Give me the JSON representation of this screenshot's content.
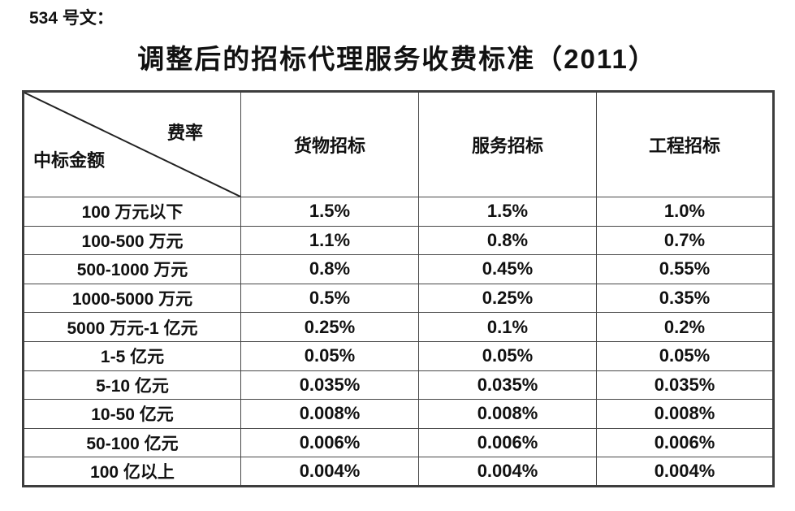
{
  "colors": {
    "background": "#ffffff",
    "text": "#111111",
    "border": "#474747"
  },
  "document": {
    "doc_label": "534 号文：",
    "title": "调整后的招标代理服务收费标准（2011）"
  },
  "table": {
    "corner": {
      "rate_label": "费率",
      "amount_label": "中标金额"
    },
    "columns": [
      "货物招标",
      "服务招标",
      "工程招标"
    ],
    "rows": [
      {
        "label": "100 万元以下",
        "values": [
          "1.5%",
          "1.5%",
          "1.0%"
        ]
      },
      {
        "label": "100-500 万元",
        "values": [
          "1.1%",
          "0.8%",
          "0.7%"
        ]
      },
      {
        "label": "500-1000 万元",
        "values": [
          "0.8%",
          "0.45%",
          "0.55%"
        ]
      },
      {
        "label": "1000-5000 万元",
        "values": [
          "0.5%",
          "0.25%",
          "0.35%"
        ]
      },
      {
        "label": "5000 万元-1 亿元",
        "values": [
          "0.25%",
          "0.1%",
          "0.2%"
        ]
      },
      {
        "label": "1-5 亿元",
        "values": [
          "0.05%",
          "0.05%",
          "0.05%"
        ]
      },
      {
        "label": "5-10 亿元",
        "values": [
          "0.035%",
          "0.035%",
          "0.035%"
        ]
      },
      {
        "label": "10-50 亿元",
        "values": [
          "0.008%",
          "0.008%",
          "0.008%"
        ]
      },
      {
        "label": "50-100 亿元",
        "values": [
          "0.006%",
          "0.006%",
          "0.006%"
        ]
      },
      {
        "label": "100 亿以上",
        "values": [
          "0.004%",
          "0.004%",
          "0.004%"
        ]
      }
    ]
  }
}
